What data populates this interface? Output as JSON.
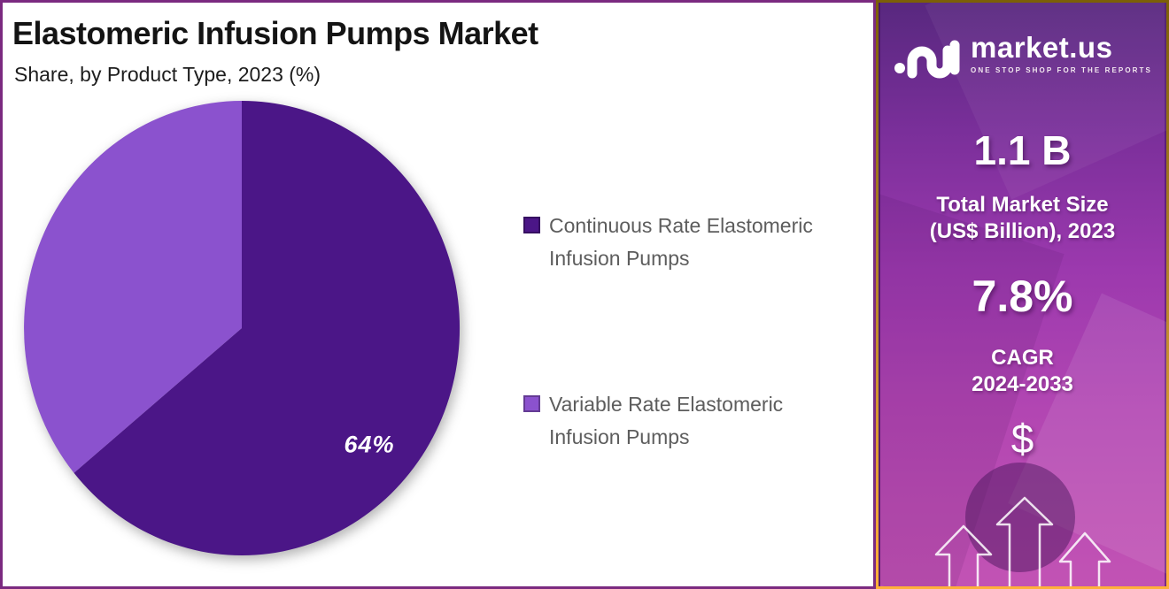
{
  "chart_data": {
    "type": "pie",
    "title": "Elastomeric Infusion Pumps Market",
    "subtitle": "Share, by Product Type, 2023 (%)",
    "unit": "%",
    "year": "2023",
    "start_angle_deg": 0,
    "direction": "clockwise",
    "legend_position": "right",
    "data_label_color": "#ffffff",
    "slices": [
      {
        "label": "Continuous Rate Elastomeric Infusion Pumps",
        "value": 64,
        "color": "#4b1687",
        "data_label": "64%"
      },
      {
        "label": "Variable Rate Elastomeric Infusion Pumps",
        "value": 36,
        "color": "#8b52ce",
        "data_label": ""
      }
    ]
  },
  "sidebar": {
    "brand_name": "market.us",
    "brand_tagline": "ONE STOP SHOP FOR THE REPORTS",
    "stat1_value": "1.1 B",
    "stat1_label_line1": "Total Market Size",
    "stat1_label_line2": "(US$ Billion), 2023",
    "stat2_value": "7.8%",
    "stat2_label_line1": "CAGR",
    "stat2_label_line2": "2024-2033",
    "dollar_symbol": "$"
  },
  "colors": {
    "frame_border": "#7b2a80",
    "sidebar_border_gold_top": "#7c5f07",
    "sidebar_border_gold_bottom": "#ffb03a",
    "sidebar_gradient_top": "#58287f",
    "sidebar_gradient_bottom": "#c253b4",
    "legend_text": "#5d5d5d",
    "pie_dark": "#4b1687",
    "pie_light": "#8b52ce"
  }
}
